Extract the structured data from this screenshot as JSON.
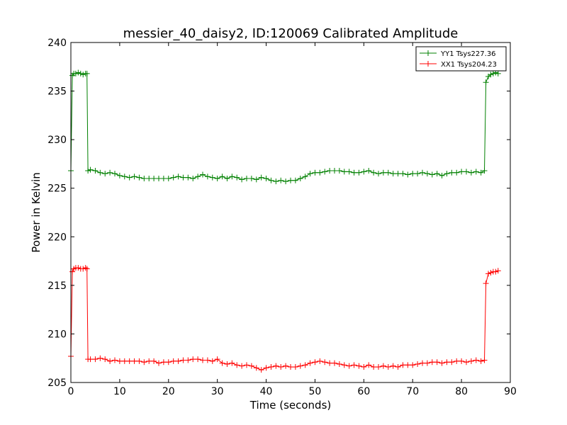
{
  "chart_data": {
    "type": "line",
    "title": "messier_40_daisy2, ID:120069 Calibrated Amplitude",
    "xlabel": "Time (seconds)",
    "ylabel": "Power in Kelvin",
    "xlim": [
      0,
      90
    ],
    "ylim": [
      205,
      240
    ],
    "xticks": [
      0,
      10,
      20,
      30,
      40,
      50,
      60,
      70,
      80,
      90
    ],
    "yticks": [
      205,
      210,
      215,
      220,
      225,
      230,
      235,
      240
    ],
    "grid": false,
    "legend_position": "top-right",
    "marker": "plus",
    "series": [
      {
        "name": "YY1 Tsys227.36",
        "color": "#008000",
        "x": [
          0,
          0.3,
          0.6,
          1,
          1.5,
          2,
          2.5,
          3,
          3.3,
          3.5,
          4,
          5,
          6,
          7,
          8,
          9,
          10,
          11,
          12,
          13,
          14,
          15,
          16,
          17,
          18,
          19,
          20,
          21,
          22,
          23,
          24,
          25,
          26,
          27,
          28,
          29,
          30,
          31,
          32,
          33,
          34,
          35,
          36,
          37,
          38,
          39,
          40,
          41,
          42,
          43,
          44,
          45,
          46,
          47,
          48,
          49,
          50,
          51,
          52,
          53,
          54,
          55,
          56,
          57,
          58,
          59,
          60,
          61,
          62,
          63,
          64,
          65,
          66,
          67,
          68,
          69,
          70,
          71,
          72,
          73,
          74,
          75,
          76,
          77,
          78,
          79,
          80,
          81,
          82,
          83,
          84,
          84.7,
          85,
          85.5,
          86,
          86.5,
          87,
          87.5
        ],
        "y": [
          226.8,
          236.6,
          236.8,
          236.8,
          236.9,
          236.8,
          236.7,
          236.8,
          236.8,
          226.8,
          226.9,
          226.8,
          226.6,
          226.5,
          226.6,
          226.5,
          226.3,
          226.2,
          226.1,
          226.2,
          226.1,
          226.0,
          226.0,
          226.0,
          226.0,
          226.0,
          226.0,
          226.1,
          226.2,
          226.1,
          226.1,
          226.0,
          226.2,
          226.4,
          226.2,
          226.1,
          226.0,
          226.2,
          226.0,
          226.2,
          226.1,
          225.9,
          226.0,
          226.0,
          225.9,
          226.1,
          226.0,
          225.8,
          225.7,
          225.8,
          225.7,
          225.8,
          225.8,
          226.0,
          226.2,
          226.5,
          226.6,
          226.6,
          226.7,
          226.8,
          226.8,
          226.8,
          226.7,
          226.7,
          226.6,
          226.6,
          226.7,
          226.8,
          226.6,
          226.5,
          226.6,
          226.6,
          226.5,
          226.5,
          226.5,
          226.4,
          226.5,
          226.5,
          226.6,
          226.5,
          226.4,
          226.5,
          226.3,
          226.5,
          226.6,
          226.6,
          226.7,
          226.7,
          226.6,
          226.7,
          226.6,
          226.8,
          235.9,
          236.5,
          236.7,
          236.8,
          236.9,
          236.8
        ]
      },
      {
        "name": "XX1 Tsys204.23",
        "color": "#ff0000",
        "x": [
          0,
          0.3,
          0.6,
          1,
          1.5,
          2,
          2.5,
          3,
          3.3,
          3.5,
          4,
          5,
          6,
          7,
          8,
          9,
          10,
          11,
          12,
          13,
          14,
          15,
          16,
          17,
          18,
          19,
          20,
          21,
          22,
          23,
          24,
          25,
          26,
          27,
          28,
          29,
          30,
          31,
          32,
          33,
          34,
          35,
          36,
          37,
          38,
          39,
          40,
          41,
          42,
          43,
          44,
          45,
          46,
          47,
          48,
          49,
          50,
          51,
          52,
          53,
          54,
          55,
          56,
          57,
          58,
          59,
          60,
          61,
          62,
          63,
          64,
          65,
          66,
          67,
          68,
          69,
          70,
          71,
          72,
          73,
          74,
          75,
          76,
          77,
          78,
          79,
          80,
          81,
          82,
          83,
          84,
          84.7,
          85,
          85.5,
          86,
          86.5,
          87,
          87.5
        ],
        "y": [
          207.7,
          216.4,
          216.7,
          216.8,
          216.8,
          216.7,
          216.7,
          216.8,
          216.7,
          207.4,
          207.4,
          207.4,
          207.5,
          207.4,
          207.2,
          207.3,
          207.2,
          207.2,
          207.2,
          207.2,
          207.2,
          207.1,
          207.2,
          207.2,
          207.0,
          207.1,
          207.1,
          207.2,
          207.2,
          207.3,
          207.3,
          207.4,
          207.4,
          207.3,
          207.3,
          207.2,
          207.4,
          207.0,
          206.9,
          207.0,
          206.8,
          206.7,
          206.8,
          206.7,
          206.5,
          206.3,
          206.5,
          206.6,
          206.7,
          206.6,
          206.7,
          206.6,
          206.6,
          206.7,
          206.8,
          207.0,
          207.1,
          207.2,
          207.1,
          207.0,
          207.0,
          206.9,
          206.8,
          206.7,
          206.8,
          206.7,
          206.6,
          206.8,
          206.6,
          206.6,
          206.7,
          206.6,
          206.7,
          206.6,
          206.8,
          206.8,
          206.8,
          206.9,
          207.0,
          207.0,
          207.1,
          207.1,
          207.0,
          207.1,
          207.1,
          207.2,
          207.2,
          207.1,
          207.2,
          207.3,
          207.2,
          207.3,
          215.2,
          216.2,
          216.3,
          216.4,
          216.4,
          216.5
        ]
      }
    ]
  }
}
